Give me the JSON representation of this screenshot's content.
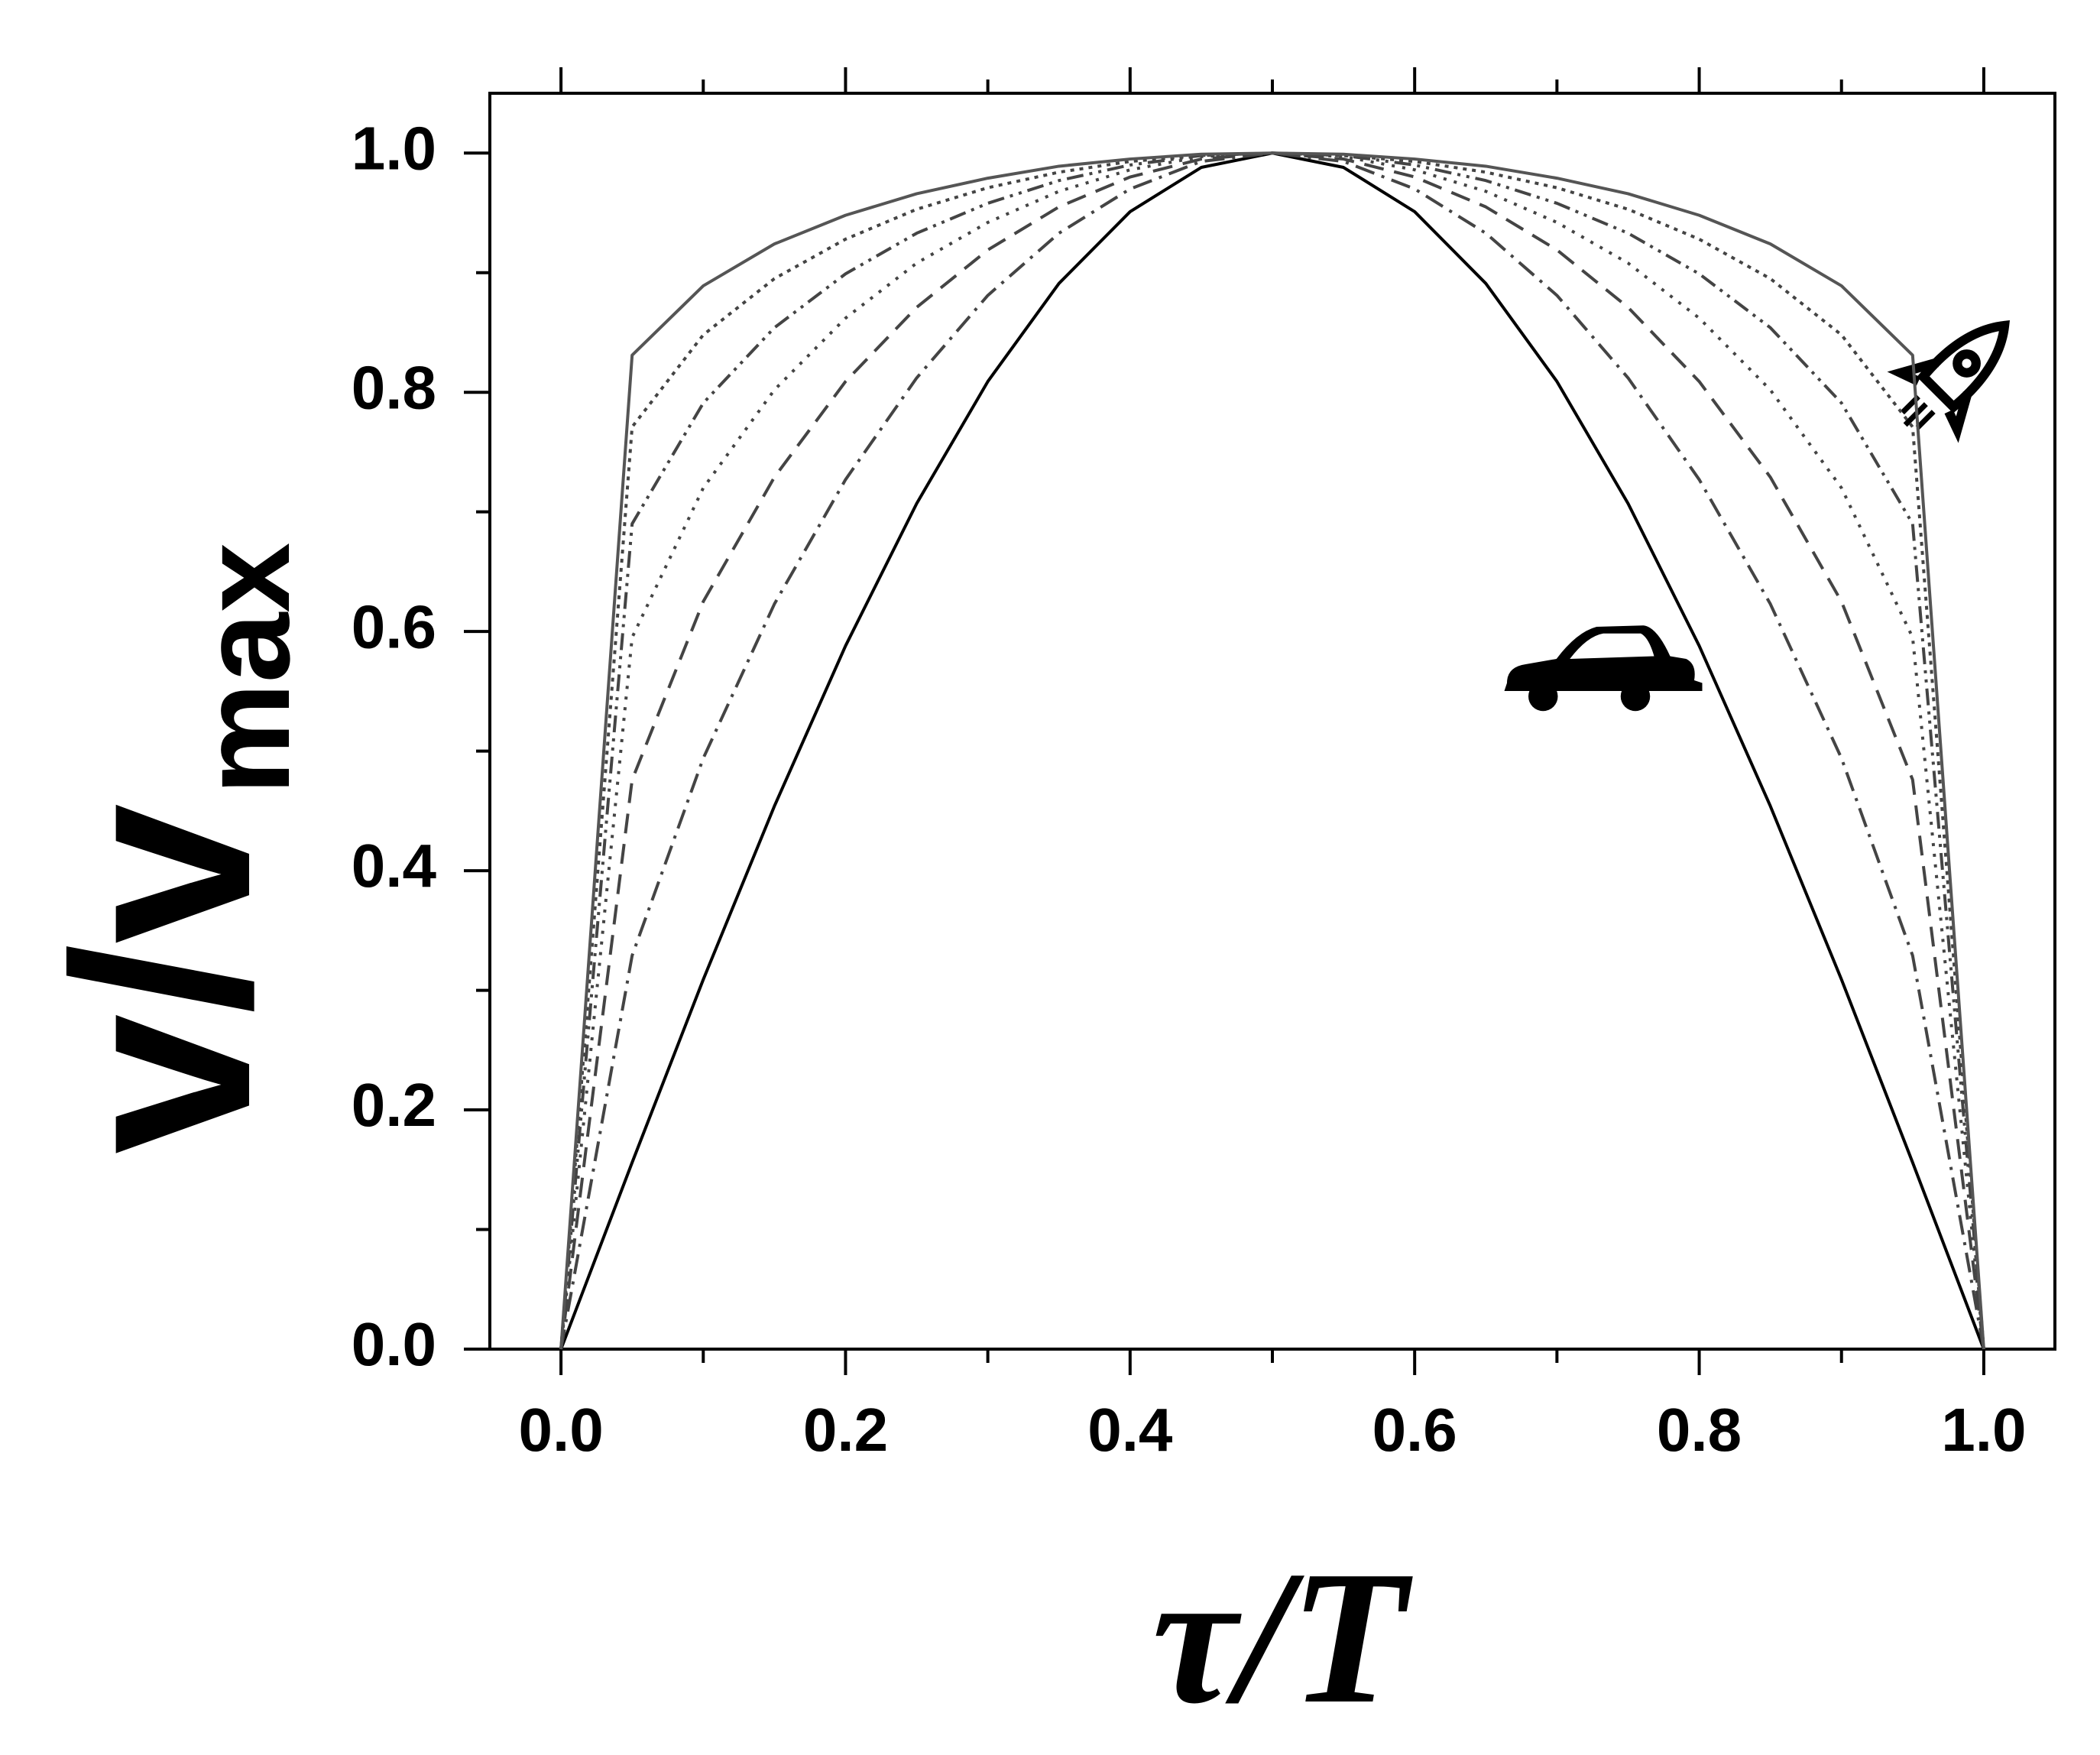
{
  "chart_data": {
    "type": "line",
    "ylabel": "v/v",
    "ylabel_sub": "max",
    "xlabel": "τ/T",
    "x": [
      0,
      0.05,
      0.1,
      0.15,
      0.2,
      0.25,
      0.3,
      0.35,
      0.4,
      0.45,
      0.5,
      0.55,
      0.6,
      0.65,
      0.7,
      0.75,
      0.8,
      0.85,
      0.9,
      0.95,
      1
    ],
    "series": [
      {
        "color": "#000000",
        "dash": "none",
        "values": [
          0,
          0.156,
          0.309,
          0.454,
          0.588,
          0.707,
          0.809,
          0.891,
          0.951,
          0.988,
          1,
          0.988,
          0.951,
          0.891,
          0.809,
          0.707,
          0.588,
          0.454,
          0.309,
          0.156,
          0
        ]
      },
      {
        "color": "#444444",
        "dash": "26 10 4 10",
        "values": [
          0,
          0.329,
          0.494,
          0.623,
          0.727,
          0.812,
          0.881,
          0.933,
          0.97,
          0.993,
          1,
          0.993,
          0.97,
          0.933,
          0.881,
          0.812,
          0.727,
          0.623,
          0.494,
          0.329,
          0
        ]
      },
      {
        "color": "#444444",
        "dash": "26 14",
        "values": [
          0,
          0.476,
          0.625,
          0.729,
          0.809,
          0.871,
          0.919,
          0.955,
          0.98,
          0.995,
          1,
          0.995,
          0.98,
          0.955,
          0.919,
          0.871,
          0.809,
          0.729,
          0.625,
          0.476,
          0
        ]
      },
      {
        "color": "#444444",
        "dash": "4 10",
        "values": [
          0,
          0.595,
          0.72,
          0.802,
          0.862,
          0.908,
          0.942,
          0.968,
          0.986,
          0.997,
          1,
          0.997,
          0.986,
          0.968,
          0.942,
          0.908,
          0.862,
          0.802,
          0.72,
          0.595,
          0
        ]
      },
      {
        "color": "#444444",
        "dash": "22 8 4 8 4 8",
        "values": [
          0,
          0.69,
          0.791,
          0.854,
          0.899,
          0.933,
          0.958,
          0.977,
          0.99,
          0.998,
          1,
          0.998,
          0.99,
          0.977,
          0.958,
          0.933,
          0.899,
          0.854,
          0.791,
          0.69,
          0
        ]
      },
      {
        "color": "#444444",
        "dash": "5 7",
        "values": [
          0,
          0.771,
          0.848,
          0.895,
          0.928,
          0.953,
          0.971,
          0.984,
          0.993,
          0.998,
          1,
          0.998,
          0.993,
          0.984,
          0.971,
          0.953,
          0.928,
          0.895,
          0.848,
          0.771,
          0
        ]
      },
      {
        "color": "#555555",
        "dash": "none",
        "values": [
          0,
          0.831,
          0.889,
          0.924,
          0.948,
          0.966,
          0.979,
          0.989,
          0.995,
          0.999,
          1,
          0.999,
          0.995,
          0.989,
          0.979,
          0.966,
          0.948,
          0.924,
          0.889,
          0.831,
          0
        ]
      }
    ],
    "xlim": [
      -0.05,
      1.05
    ],
    "ylim": [
      0,
      1.05
    ],
    "xticks": [
      {
        "value": 0,
        "label": "0.0"
      },
      0.2,
      0.4,
      0.6,
      0.8,
      {
        "value": 1,
        "label": "1.0"
      }
    ],
    "yticks": [
      {
        "value": 0,
        "label": "0.0"
      },
      0.2,
      0.4,
      0.6,
      0.8,
      {
        "value": 1,
        "label": "1.0"
      }
    ],
    "xticks_minor": [
      0.1,
      0.3,
      0.5,
      0.7,
      0.9
    ],
    "yticks_minor": [
      0.1,
      0.3,
      0.5,
      0.7,
      0.9
    ],
    "grid": false
  }
}
